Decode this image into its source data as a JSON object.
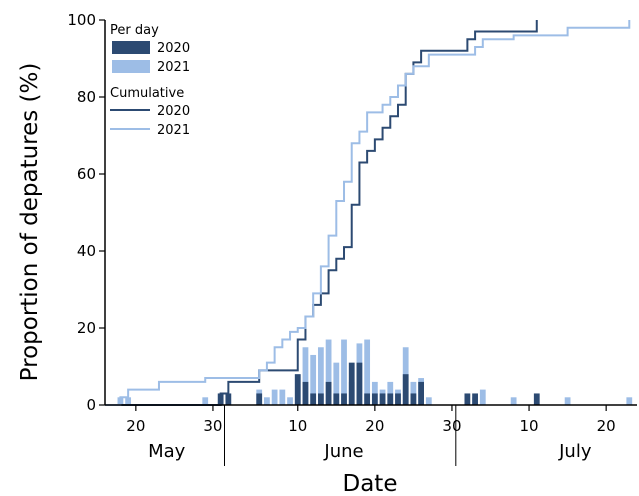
{
  "chart_data": {
    "type": "bar+step",
    "ylabel": "Proportion of depatures (%)",
    "xlabel": "Date",
    "ylim": [
      0,
      100
    ],
    "yticks": [
      0,
      20,
      40,
      60,
      80,
      100
    ],
    "xlim": [
      "2020-05-16",
      "2020-07-24"
    ],
    "xtick_labels": [
      {
        "date": "2020-05-20",
        "label": "20"
      },
      {
        "date": "2020-05-30",
        "label": "30"
      },
      {
        "date": "2020-06-10",
        "label": "10"
      },
      {
        "date": "2020-06-20",
        "label": "20"
      },
      {
        "date": "2020-06-30",
        "label": "30"
      },
      {
        "date": "2020-07-10",
        "label": "10"
      },
      {
        "date": "2020-07-20",
        "label": "20"
      }
    ],
    "month_labels": [
      {
        "label": "May",
        "center": "2020-05-24"
      },
      {
        "label": "June",
        "center": "2020-06-16"
      },
      {
        "label": "July",
        "center": "2020-07-16"
      }
    ],
    "month_dividers": [
      "2020-06-01",
      "2020-07-01"
    ],
    "legend": {
      "per_day_title": "Per day",
      "cumulative_title": "Cumulative",
      "labels": [
        "2020",
        "2021"
      ],
      "position": "top-left"
    },
    "colors": {
      "2020": "#2c4a72",
      "2021": "#9dbde6"
    },
    "per_day": [
      {
        "name": "2020",
        "dates": [
          "2020-05-31",
          "2020-06-01",
          "2020-06-05",
          "2020-06-10",
          "2020-06-11",
          "2020-06-12",
          "2020-06-13",
          "2020-06-14",
          "2020-06-15",
          "2020-06-16",
          "2020-06-17",
          "2020-06-18",
          "2020-06-19",
          "2020-06-20",
          "2020-06-21",
          "2020-06-22",
          "2020-06-23",
          "2020-06-24",
          "2020-06-25",
          "2020-06-26",
          "2020-06-27",
          "2020-07-02",
          "2020-07-03",
          "2020-07-11"
        ],
        "values": [
          3,
          3,
          3,
          8,
          6,
          3,
          3,
          6,
          3,
          3,
          11,
          11,
          3,
          3,
          3,
          3,
          3,
          8,
          3,
          6,
          0,
          3,
          3,
          3
        ]
      },
      {
        "name": "2021",
        "dates": [
          "2020-05-18",
          "2020-05-19",
          "2020-05-29",
          "2020-06-05",
          "2020-06-06",
          "2020-06-07",
          "2020-06-08",
          "2020-06-09",
          "2020-06-10",
          "2020-06-11",
          "2020-06-12",
          "2020-06-13",
          "2020-06-14",
          "2020-06-15",
          "2020-06-16",
          "2020-06-17",
          "2020-06-18",
          "2020-06-19",
          "2020-06-20",
          "2020-06-21",
          "2020-06-22",
          "2020-06-23",
          "2020-06-24",
          "2020-06-25",
          "2020-06-26",
          "2020-06-27",
          "2020-07-03",
          "2020-07-04",
          "2020-07-08",
          "2020-07-15",
          "2020-07-23"
        ],
        "values": [
          2,
          2,
          2,
          4,
          2,
          4,
          4,
          2,
          8,
          15,
          13,
          15,
          17,
          11,
          17,
          6,
          16,
          17,
          6,
          4,
          6,
          4,
          15,
          6,
          7,
          2,
          2,
          4,
          2,
          2,
          2
        ]
      }
    ],
    "cumulative": [
      {
        "name": "2020",
        "x": [
          "2020-05-16",
          "2020-05-31",
          "2020-06-01",
          "2020-06-05",
          "2020-06-10",
          "2020-06-11",
          "2020-06-12",
          "2020-06-13",
          "2020-06-14",
          "2020-06-15",
          "2020-06-16",
          "2020-06-17",
          "2020-06-18",
          "2020-06-19",
          "2020-06-20",
          "2020-06-21",
          "2020-06-22",
          "2020-06-23",
          "2020-06-24",
          "2020-06-25",
          "2020-06-26",
          "2020-06-27",
          "2020-07-02",
          "2020-07-03",
          "2020-07-11"
        ],
        "y": [
          0,
          3,
          6,
          9,
          17,
          23,
          26,
          29,
          35,
          38,
          41,
          52,
          63,
          66,
          69,
          72,
          75,
          78,
          86,
          89,
          92,
          92,
          95,
          97,
          100
        ]
      },
      {
        "name": "2021",
        "x": [
          "2020-05-16",
          "2020-05-18",
          "2020-05-19",
          "2020-05-23",
          "2020-05-29",
          "2020-06-05",
          "2020-06-06",
          "2020-06-07",
          "2020-06-08",
          "2020-06-09",
          "2020-06-10",
          "2020-06-11",
          "2020-06-12",
          "2020-06-13",
          "2020-06-14",
          "2020-06-15",
          "2020-06-16",
          "2020-06-17",
          "2020-06-18",
          "2020-06-19",
          "2020-06-20",
          "2020-06-21",
          "2020-06-22",
          "2020-06-23",
          "2020-06-24",
          "2020-06-25",
          "2020-06-26",
          "2020-06-27",
          "2020-07-03",
          "2020-07-04",
          "2020-07-08",
          "2020-07-15",
          "2020-07-23"
        ],
        "y": [
          0,
          2,
          4,
          6,
          7,
          9,
          11,
          15,
          17,
          19,
          20,
          23,
          29,
          36,
          44,
          53,
          58,
          68,
          71,
          76,
          76,
          78,
          80,
          83,
          86,
          88,
          88,
          91,
          93,
          95,
          96,
          98,
          100
        ]
      }
    ],
    "grid": false
  }
}
